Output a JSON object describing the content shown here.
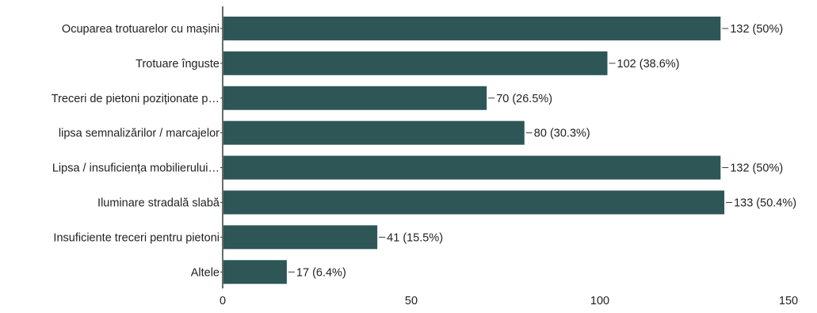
{
  "chart_data": {
    "type": "bar",
    "orientation": "horizontal",
    "categories": [
      "Ocuparea trotuarelor cu mașini",
      "Trotuare înguste",
      "Treceri de pietoni poziționate p…",
      "lipsa semnalizărilor / marcajelor",
      "Lipsa / insuficiența mobilierului…",
      "Iluminare stradală slabă",
      "Insuficiente treceri pentru pietoni",
      "Altele"
    ],
    "values": [
      132,
      102,
      70,
      80,
      132,
      133,
      41,
      17
    ],
    "data_labels": [
      "132 (50%)",
      "102 (38.6%)",
      "70 (26.5%)",
      "80 (30.3%)",
      "132 (50%)",
      "133 (50.4%)",
      "41 (15.5%)",
      "17 (6.4%)"
    ],
    "xticks": [
      "0",
      "50",
      "100",
      "150"
    ],
    "xlim": [
      0,
      150
    ],
    "title": "",
    "xlabel": "",
    "ylabel": "",
    "grid": false,
    "colors": {
      "bar": "#2e5656",
      "axis": "#3a3a3a",
      "text": "#222222"
    }
  }
}
